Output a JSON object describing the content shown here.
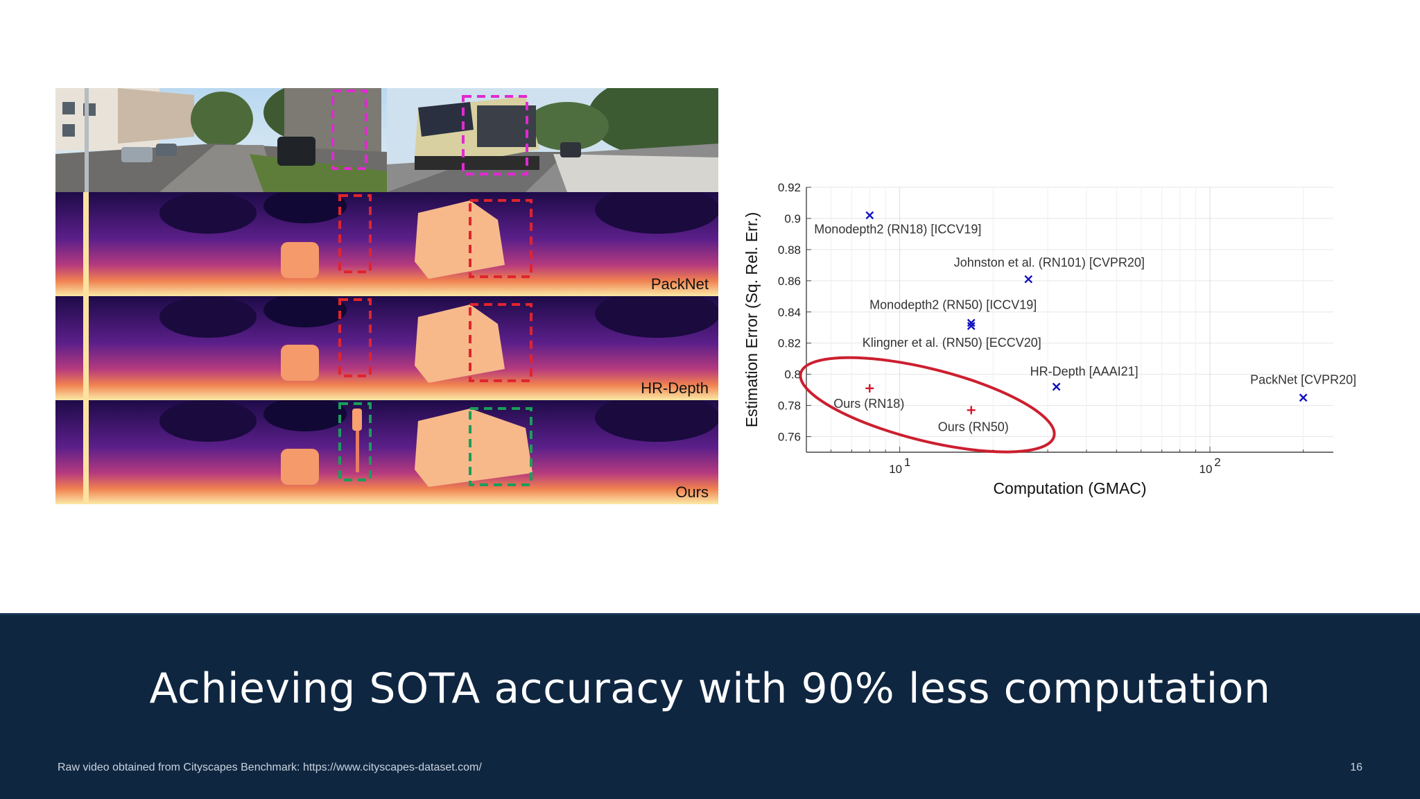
{
  "slide": {
    "headline": "Achieving SOTA accuracy with 90% less computation",
    "source_note": "Raw video obtained from Cityscapes Benchmark: https://www.cityscapes-dataset.com/",
    "page_number": "16"
  },
  "qualitative": {
    "row_labels": [
      "PackNet",
      "HR-Depth",
      "Ours"
    ]
  },
  "colors": {
    "footer_bg": "#0f2640",
    "highlight_bad": "#e0242e",
    "highlight_good": "#1a9e5a",
    "highlight_input": "#e02ad0",
    "baseline_marker": "#1010c0",
    "ours_marker": "#d0182a",
    "ellipse": "#cc1f2f"
  },
  "chart_data": {
    "type": "scatter",
    "xlabel": "Computation (GMAC)",
    "ylabel": "Estimation Error (Sq. Rel. Err.)",
    "xscale": "log",
    "xlim": [
      5,
      250
    ],
    "ylim": [
      0.75,
      0.92
    ],
    "yticks": [
      "0.76",
      "0.78",
      "0.8",
      "0.82",
      "0.84",
      "0.86",
      "0.88",
      "0.9",
      "0.92"
    ],
    "xticks": [
      {
        "value": 10,
        "base": "10",
        "exp": "1"
      },
      {
        "value": 100,
        "base": "10",
        "exp": "2"
      }
    ],
    "grid": true,
    "points": [
      {
        "label": "Monodepth2 (RN18) [ICCV19]",
        "x": 8,
        "y": 0.902,
        "group": "baseline",
        "marker": "x"
      },
      {
        "label": "Johnston et al. (RN101) [CVPR20]",
        "x": 26,
        "y": 0.861,
        "group": "baseline",
        "marker": "x"
      },
      {
        "label": "Monodepth2 (RN50) [ICCV19]",
        "x": 17,
        "y": 0.833,
        "group": "baseline",
        "marker": "x"
      },
      {
        "label": "Klingner et al. (RN50) [ECCV20]",
        "x": 17,
        "y": 0.831,
        "group": "baseline",
        "marker": "x"
      },
      {
        "label": "HR-Depth [AAAI21]",
        "x": 32,
        "y": 0.792,
        "group": "baseline",
        "marker": "x"
      },
      {
        "label": "PackNet [CVPR20]",
        "x": 200,
        "y": 0.785,
        "group": "baseline",
        "marker": "x"
      },
      {
        "label": "Ours (RN18)",
        "x": 8,
        "y": 0.791,
        "group": "ours",
        "marker": "+"
      },
      {
        "label": "Ours (RN50)",
        "x": 17,
        "y": 0.777,
        "group": "ours",
        "marker": "+"
      }
    ]
  }
}
